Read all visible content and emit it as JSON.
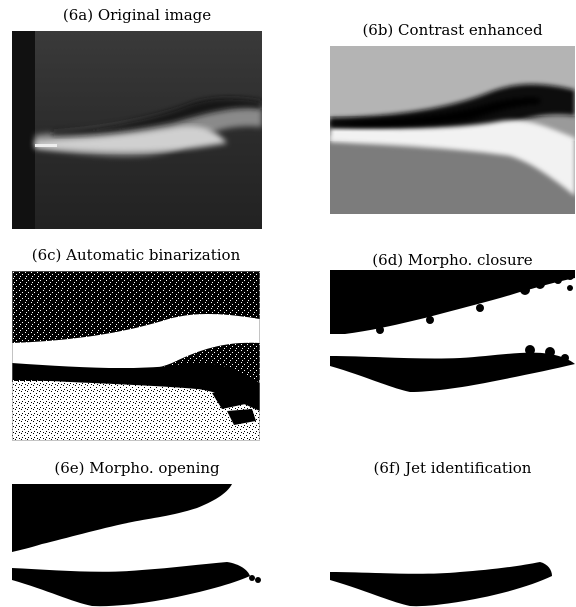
{
  "figure": {
    "panels": [
      {
        "id": "6a",
        "caption": "(6a) Original image"
      },
      {
        "id": "6b",
        "caption": "(6b) Contrast enhanced"
      },
      {
        "id": "6c",
        "caption": "(6c) Automatic binarization"
      },
      {
        "id": "6d",
        "caption": "(6d) Morpho. closure"
      },
      {
        "id": "6e",
        "caption": "(6e) Morpho. opening"
      },
      {
        "id": "6f",
        "caption": "(6f) Jet identification"
      }
    ]
  }
}
